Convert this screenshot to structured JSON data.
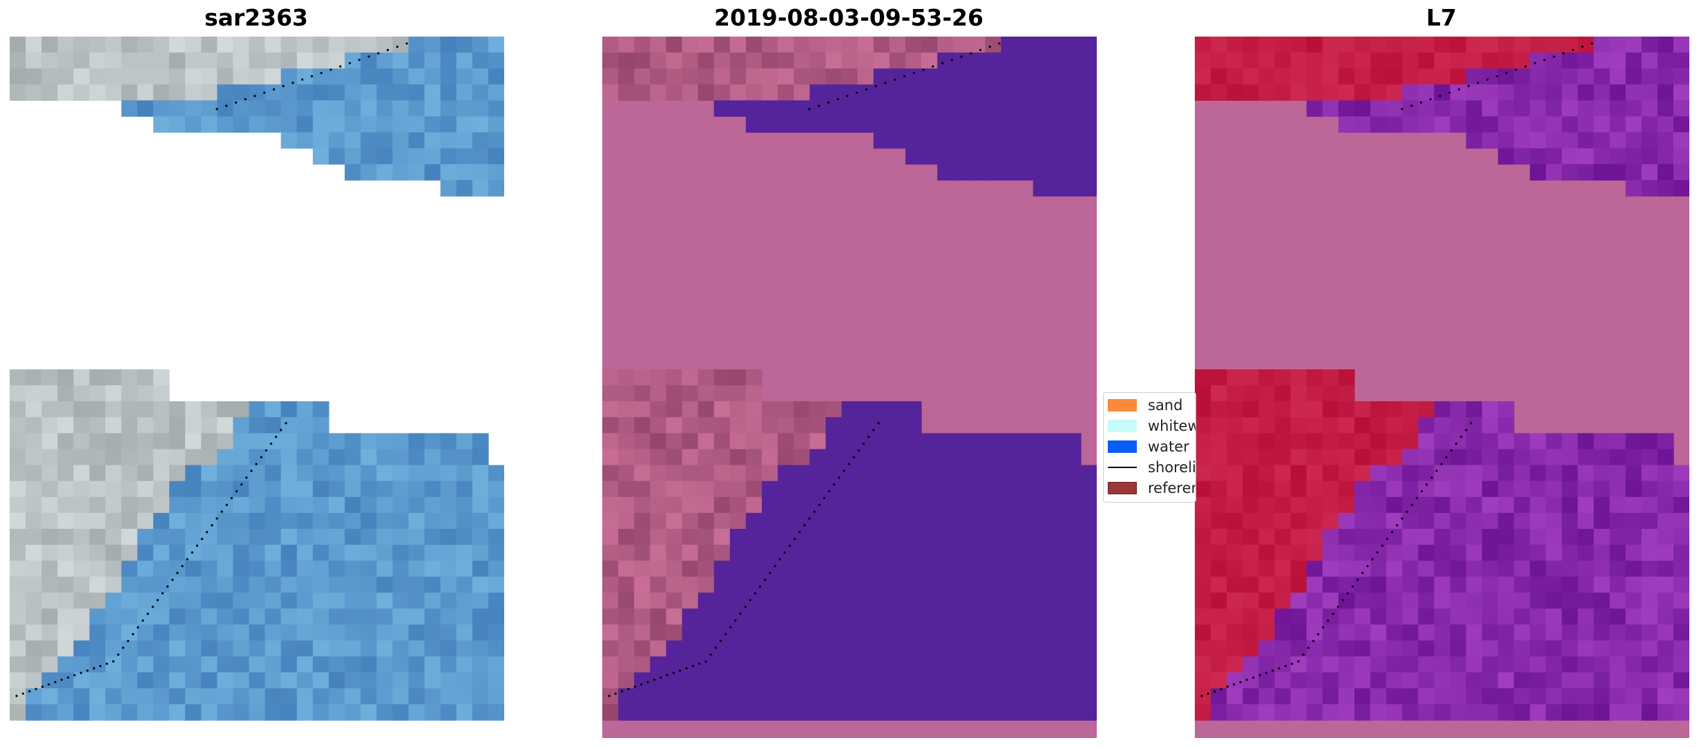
{
  "panels": [
    {
      "title": "sar2363"
    },
    {
      "title": "2019-08-03-09-53-26"
    },
    {
      "title": "L7"
    }
  ],
  "legend": {
    "items": [
      {
        "label": "sand",
        "color": "#f98b3a",
        "kind": "patch"
      },
      {
        "label": "whitewater",
        "color": "#c8fbfb",
        "kind": "patch"
      },
      {
        "label": "water",
        "color": "#0b5df7",
        "kind": "patch"
      },
      {
        "label": "shoreline",
        "color": "#000000",
        "kind": "line"
      },
      {
        "label": "reference shoreline",
        "color": "#9a3838",
        "kind": "patch"
      }
    ]
  },
  "colors": {
    "cloud_mask": "#bc6797",
    "water_class": "#55249a",
    "land_index": "#c0173f",
    "water_index": "#8630a8"
  }
}
